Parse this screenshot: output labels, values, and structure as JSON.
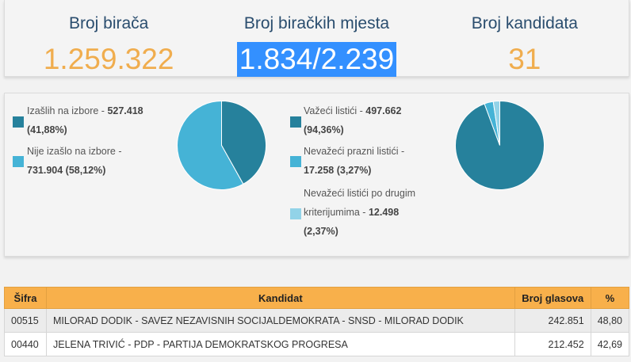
{
  "stats": [
    {
      "label": "Broj birača",
      "value": "1.259.322"
    },
    {
      "label": "Broj biračkih mjesta",
      "value": "1.834/2.239"
    },
    {
      "label": "Broj kandidata",
      "value": "31"
    }
  ],
  "turnout": {
    "items": [
      {
        "line1": "Izašlih na izbore - ",
        "bold1": "527.418",
        "line2": "(41,88%)",
        "color": "#26819c",
        "share": 41.88
      },
      {
        "line1": "Nije izašlo na izbore - ",
        "line2": "731.904 (58,12%)",
        "color": "#45b3d6",
        "share": 58.12
      }
    ]
  },
  "ballots": {
    "items": [
      {
        "line1": "Važeći listići - ",
        "bold1": "497.662",
        "line2": "(94,36%)",
        "color": "#26819c",
        "share": 94.36
      },
      {
        "line1": "Nevažeći prazni listići - ",
        "line2": "17.258 (3,27%)",
        "color": "#45b3d6",
        "share": 3.27
      },
      {
        "line0": "Nevažeći listići po drugim",
        "line1": "kriterijumima - ",
        "bold1": "12.498",
        "line2": "(2,37%)",
        "color": "#92d3e8",
        "share": 2.37
      }
    ]
  },
  "table": {
    "headers": [
      "Šifra",
      "Kandidat",
      "Broj glasova",
      "%"
    ],
    "rows": [
      {
        "code": "00515",
        "candidate": "MILORAD DODIK - SAVEZ NEZAVISNIH SOCIJALDEMOKRATA - SNSD - MILORAD DODIK",
        "votes": "242.851",
        "pct": "48,80"
      },
      {
        "code": "00440",
        "candidate": "JELENA TRIVIĆ - PDP - PARTIJA DEMOKRATSKOG PROGRESA",
        "votes": "212.452",
        "pct": "42,69"
      }
    ]
  }
}
